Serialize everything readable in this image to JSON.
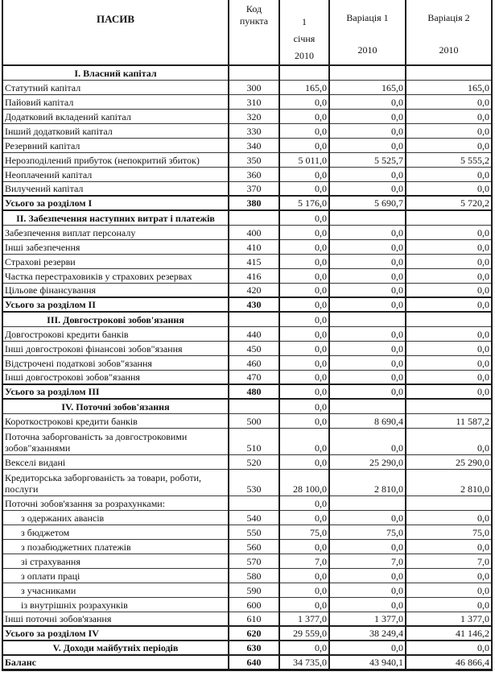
{
  "page": {
    "background": "#ffffff",
    "text_color": "#111111",
    "border_color": "#1f1f1f"
  },
  "table": {
    "header": {
      "pasiv": "ПАСИВ",
      "code_lines": [
        "Код",
        "пункта"
      ],
      "date_lines": [
        "1",
        "січня",
        "2010"
      ],
      "var1_lines": [
        "Варіація 1",
        "2010"
      ],
      "var2_lines": [
        "Варіація 2",
        "2010"
      ]
    },
    "rows": [
      {
        "t": "section",
        "label": "I. Власний капітал",
        "code": "",
        "v": [
          "",
          "",
          ""
        ]
      },
      {
        "t": "data",
        "label": "Статутний капітал",
        "code": "300",
        "v": [
          "165,0",
          "165,0",
          "165,0"
        ]
      },
      {
        "t": "data",
        "label": "Пайовий капітал",
        "code": "310",
        "v": [
          "0,0",
          "0,0",
          "0,0"
        ]
      },
      {
        "t": "data",
        "label": "Додатковий вкладений капітал",
        "code": "320",
        "v": [
          "0,0",
          "0,0",
          "0,0"
        ]
      },
      {
        "t": "data",
        "label": "Інший додатковий капітал",
        "code": "330",
        "v": [
          "0,0",
          "0,0",
          "0,0"
        ]
      },
      {
        "t": "data",
        "label": "Резервний капітал",
        "code": "340",
        "v": [
          "0,0",
          "0,0",
          "0,0"
        ]
      },
      {
        "t": "data",
        "label": "Нерозподілений прибуток (непокритий збиток)",
        "code": "350",
        "v": [
          "5 011,0",
          "5 525,7",
          "5 555,2"
        ]
      },
      {
        "t": "data",
        "label": "Неоплачений капітал",
        "code": "360",
        "v": [
          "0,0",
          "0,0",
          "0,0"
        ]
      },
      {
        "t": "data",
        "label": "Вилучений капітал",
        "code": "370",
        "v": [
          "0,0",
          "0,0",
          "0,0"
        ]
      },
      {
        "t": "total",
        "label": "Усього за розділом I",
        "code": "380",
        "v": [
          "5 176,0",
          "5 690,7",
          "5 720,2"
        ]
      },
      {
        "t": "section",
        "label": "II. Забезпечення наступних витрат і платежів",
        "code": "",
        "v": [
          "0,0",
          "",
          ""
        ]
      },
      {
        "t": "data",
        "label": "Забезпечення виплат персоналу",
        "code": "400",
        "v": [
          "0,0",
          "0,0",
          "0,0"
        ]
      },
      {
        "t": "data",
        "label": "Інші забезпечення",
        "code": "410",
        "v": [
          "0,0",
          "0,0",
          "0,0"
        ]
      },
      {
        "t": "data",
        "label": "Страхові резерви",
        "code": "415",
        "v": [
          "0,0",
          "0,0",
          "0,0"
        ]
      },
      {
        "t": "data",
        "label": "Частка перестраховиків у страхових резервах",
        "code": "416",
        "v": [
          "0,0",
          "0,0",
          "0,0"
        ]
      },
      {
        "t": "data",
        "label": "Цільове фінансування",
        "code": "420",
        "v": [
          "0,0",
          "0,0",
          "0,0"
        ]
      },
      {
        "t": "total",
        "label": "Усього за розділом II",
        "code": "430",
        "v": [
          "0,0",
          "0,0",
          "0,0"
        ]
      },
      {
        "t": "section",
        "label": "III. Довгострокові зобов'язання",
        "code": "",
        "v": [
          "0,0",
          "",
          ""
        ]
      },
      {
        "t": "data",
        "label": "Довгострокові кредити банків",
        "code": "440",
        "v": [
          "0,0",
          "0,0",
          "0,0"
        ]
      },
      {
        "t": "data",
        "label": "Інші довгострокові фінансові зобов\"язання",
        "code": "450",
        "v": [
          "0,0",
          "0,0",
          "0,0"
        ]
      },
      {
        "t": "data",
        "label": "Відстрочені податкові зобов\"язання",
        "code": "460",
        "v": [
          "0,0",
          "0,0",
          "0,0"
        ]
      },
      {
        "t": "data",
        "label": "Інші довгострокові зобов\"язання",
        "code": "470",
        "v": [
          "0,0",
          "0,0",
          "0,0"
        ]
      },
      {
        "t": "total",
        "label": "Усього за розділом III",
        "code": "480",
        "v": [
          "0,0",
          "0,0",
          "0,0"
        ]
      },
      {
        "t": "section",
        "label": "IV. Поточні зобов'язання",
        "code": "",
        "v": [
          "0,0",
          "",
          ""
        ]
      },
      {
        "t": "data",
        "label": "Короткострокові кредити банків",
        "code": "500",
        "v": [
          "0,0",
          "8 690,4",
          "11 587,2"
        ]
      },
      {
        "t": "data",
        "tall": true,
        "label": "Поточна заборгованість за довгостроковими зобов\"язаннями",
        "code": "510",
        "v": [
          "0,0",
          "0,0",
          "0,0"
        ]
      },
      {
        "t": "data",
        "label": "Векселі видані",
        "code": "520",
        "v": [
          "0,0",
          "25 290,0",
          "25 290,0"
        ]
      },
      {
        "t": "data",
        "tall": true,
        "label": "Кредиторська заборгованість за товари, роботи, послуги",
        "code": "530",
        "v": [
          "28 100,0",
          "2 810,0",
          "2 810,0"
        ]
      },
      {
        "t": "data",
        "label": "Поточні зобов'язання за розрахунками:",
        "code": "",
        "v": [
          "0,0",
          "",
          ""
        ]
      },
      {
        "t": "sub",
        "label": "з одержаних авансів",
        "code": "540",
        "v": [
          "0,0",
          "0,0",
          "0,0"
        ]
      },
      {
        "t": "sub",
        "label": "з бюджетом",
        "code": "550",
        "v": [
          "75,0",
          "75,0",
          "75,0"
        ]
      },
      {
        "t": "sub",
        "label": "з позабюджетних платежів",
        "code": "560",
        "v": [
          "0,0",
          "0,0",
          "0,0"
        ]
      },
      {
        "t": "sub",
        "label": "зі страхування",
        "code": "570",
        "v": [
          "7,0",
          "7,0",
          "7,0"
        ]
      },
      {
        "t": "sub",
        "label": "з оплати праці",
        "code": "580",
        "v": [
          "0,0",
          "0,0",
          "0,0"
        ]
      },
      {
        "t": "sub",
        "label": "з учасниками",
        "code": "590",
        "v": [
          "0,0",
          "0,0",
          "0,0"
        ]
      },
      {
        "t": "sub",
        "label": "із внутрішніх розрахунків",
        "code": "600",
        "v": [
          "0,0",
          "0,0",
          "0,0"
        ]
      },
      {
        "t": "data",
        "label": "Інші поточні зобов'язання",
        "code": "610",
        "v": [
          "1 377,0",
          "1 377,0",
          "1 377,0"
        ]
      },
      {
        "t": "total",
        "label": "Усього за розділом IV",
        "code": "620",
        "v": [
          "29 559,0",
          "38 249,4",
          "41 146,2"
        ]
      },
      {
        "t": "sectionv",
        "label": "V. Доходи майбутніх періодів",
        "code": "630",
        "v": [
          "0,0",
          "0,0",
          "0,0"
        ]
      },
      {
        "t": "balance",
        "label": "Баланс",
        "code": "640",
        "v": [
          "34 735,0",
          "43 940,1",
          "46 866,4"
        ]
      }
    ]
  }
}
